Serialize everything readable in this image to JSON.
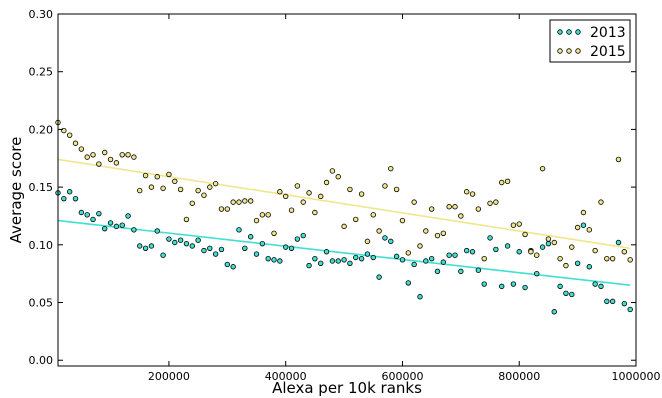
{
  "chart_data": {
    "type": "scatter",
    "title": "",
    "xlabel": "Alexa per 10k ranks",
    "ylabel": "Average score",
    "xlim": [
      10000,
      1000000
    ],
    "ylim": [
      -0.005,
      0.3
    ],
    "xticks": [
      200000,
      400000,
      600000,
      800000,
      1000000
    ],
    "xtick_labels": [
      "200000",
      "400000",
      "600000",
      "800000",
      "1000000"
    ],
    "yticks": [
      0.0,
      0.05,
      0.1,
      0.15,
      0.2,
      0.25,
      0.3
    ],
    "ytick_labels": [
      "0.00",
      "0.05",
      "0.10",
      "0.15",
      "0.20",
      "0.25",
      "0.30"
    ],
    "grid": false,
    "legend_position": "top-right",
    "series": [
      {
        "name": "2013",
        "color": "#40e0d0",
        "x": [
          10000,
          20000,
          30000,
          40000,
          50000,
          60000,
          70000,
          80000,
          90000,
          100000,
          110000,
          120000,
          130000,
          140000,
          150000,
          160000,
          170000,
          180000,
          190000,
          200000,
          210000,
          220000,
          230000,
          240000,
          250000,
          260000,
          270000,
          280000,
          290000,
          300000,
          310000,
          320000,
          330000,
          340000,
          350000,
          360000,
          370000,
          380000,
          390000,
          400000,
          410000,
          420000,
          430000,
          440000,
          450000,
          460000,
          470000,
          480000,
          490000,
          500000,
          510000,
          520000,
          530000,
          540000,
          550000,
          560000,
          570000,
          580000,
          590000,
          600000,
          610000,
          620000,
          630000,
          640000,
          650000,
          660000,
          670000,
          680000,
          690000,
          700000,
          710000,
          720000,
          730000,
          740000,
          750000,
          760000,
          770000,
          780000,
          790000,
          800000,
          810000,
          820000,
          830000,
          840000,
          850000,
          860000,
          870000,
          880000,
          890000,
          900000,
          910000,
          920000,
          930000,
          940000,
          950000,
          960000,
          970000,
          980000,
          990000
        ],
        "y": [
          0.145,
          0.14,
          0.146,
          0.14,
          0.128,
          0.126,
          0.122,
          0.127,
          0.114,
          0.119,
          0.116,
          0.117,
          0.125,
          0.113,
          0.099,
          0.097,
          0.099,
          0.112,
          0.091,
          0.105,
          0.102,
          0.104,
          0.101,
          0.099,
          0.104,
          0.095,
          0.097,
          0.092,
          0.096,
          0.083,
          0.081,
          0.113,
          0.097,
          0.107,
          0.092,
          0.101,
          0.088,
          0.087,
          0.086,
          0.098,
          0.097,
          0.105,
          0.108,
          0.082,
          0.088,
          0.084,
          0.094,
          0.086,
          0.086,
          0.087,
          0.084,
          0.089,
          0.088,
          0.092,
          0.089,
          0.072,
          0.106,
          0.103,
          0.09,
          0.087,
          0.067,
          0.083,
          0.055,
          0.086,
          0.088,
          0.077,
          0.085,
          0.091,
          0.091,
          0.077,
          0.095,
          0.094,
          0.078,
          0.066,
          0.106,
          0.096,
          0.064,
          0.099,
          0.066,
          0.094,
          0.063,
          0.095,
          0.075,
          0.098,
          0.101,
          0.042,
          0.064,
          0.058,
          0.057,
          0.084,
          0.117,
          0.081,
          0.066,
          0.064,
          0.051,
          0.051,
          0.102,
          0.049,
          0.044
        ],
        "trend": {
          "x": [
            10000,
            990000
          ],
          "y": [
            0.121,
            0.065
          ]
        }
      },
      {
        "name": "2015",
        "color": "#f0e68c",
        "x": [
          10000,
          20000,
          30000,
          40000,
          50000,
          60000,
          70000,
          80000,
          90000,
          100000,
          110000,
          120000,
          130000,
          140000,
          150000,
          160000,
          170000,
          180000,
          190000,
          200000,
          210000,
          220000,
          230000,
          240000,
          250000,
          260000,
          270000,
          280000,
          290000,
          300000,
          310000,
          320000,
          330000,
          340000,
          350000,
          360000,
          370000,
          380000,
          390000,
          400000,
          410000,
          420000,
          430000,
          440000,
          450000,
          460000,
          470000,
          480000,
          490000,
          500000,
          510000,
          520000,
          530000,
          540000,
          550000,
          560000,
          570000,
          580000,
          590000,
          600000,
          610000,
          620000,
          630000,
          640000,
          650000,
          660000,
          670000,
          680000,
          690000,
          700000,
          710000,
          720000,
          730000,
          740000,
          750000,
          760000,
          770000,
          780000,
          790000,
          800000,
          810000,
          820000,
          830000,
          840000,
          850000,
          860000,
          870000,
          880000,
          890000,
          900000,
          910000,
          920000,
          930000,
          940000,
          950000,
          960000,
          970000,
          980000,
          990000
        ],
        "y": [
          0.206,
          0.199,
          0.195,
          0.188,
          0.183,
          0.176,
          0.178,
          0.17,
          0.18,
          0.174,
          0.171,
          0.178,
          0.178,
          0.176,
          0.147,
          0.16,
          0.15,
          0.159,
          0.149,
          0.161,
          0.155,
          0.148,
          0.122,
          0.136,
          0.147,
          0.143,
          0.15,
          0.153,
          0.131,
          0.131,
          0.137,
          0.137,
          0.138,
          0.138,
          0.121,
          0.126,
          0.126,
          0.11,
          0.146,
          0.142,
          0.13,
          0.151,
          0.137,
          0.145,
          0.128,
          0.142,
          0.154,
          0.164,
          0.159,
          0.116,
          0.148,
          0.122,
          0.144,
          0.103,
          0.126,
          0.112,
          0.151,
          0.166,
          0.148,
          0.121,
          0.093,
          0.137,
          0.099,
          0.112,
          0.131,
          0.108,
          0.11,
          0.133,
          0.133,
          0.125,
          0.146,
          0.144,
          0.131,
          0.088,
          0.136,
          0.137,
          0.154,
          0.155,
          0.117,
          0.118,
          0.109,
          0.094,
          0.091,
          0.166,
          0.105,
          0.102,
          0.088,
          0.082,
          0.098,
          0.115,
          0.128,
          0.113,
          0.095,
          0.137,
          0.088,
          0.088,
          0.174,
          0.094,
          0.087
        ],
        "trend": {
          "x": [
            10000,
            990000
          ],
          "y": [
            0.174,
            0.097
          ]
        }
      }
    ]
  }
}
